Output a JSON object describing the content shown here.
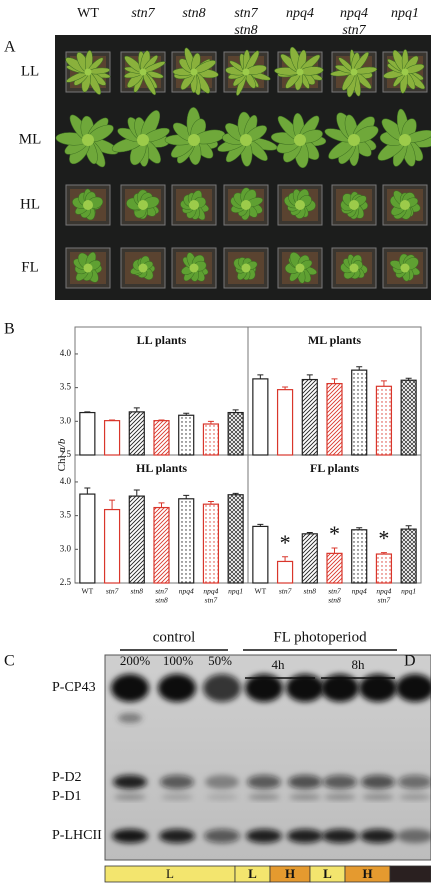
{
  "figure": {
    "panel_labels": [
      "A",
      "B",
      "C",
      "D"
    ],
    "photo": {
      "columns": [
        [
          "WT"
        ],
        [
          "stn7"
        ],
        [
          "stn8"
        ],
        [
          "stn7",
          "stn8"
        ],
        [
          "npq4"
        ],
        [
          "npq4",
          "stn7"
        ],
        [
          "npq1"
        ]
      ],
      "rows": [
        "LL",
        "ML",
        "HL",
        "FL"
      ]
    },
    "y_axis_label": [
      "Chl",
      "a/b"
    ],
    "blot": {
      "groups": [
        {
          "label": "control",
          "lanes": [
            "200%",
            "100%",
            "50%"
          ]
        },
        {
          "label": "FL photoperiod",
          "lanes": [
            "4h",
            "8h"
          ]
        }
      ],
      "proteins": [
        "P-CP43",
        "P-D2",
        "P-D1",
        "P-LHCII"
      ],
      "light_strip": [
        "L",
        "L",
        "H",
        "L",
        "H"
      ]
    }
  },
  "chart_data": [
    {
      "type": "bar",
      "title": "LL plants",
      "values": [
        3.13,
        3.01,
        3.14,
        3.01,
        3.09,
        2.96,
        3.13
      ],
      "errors": [
        0.01,
        0.01,
        0.06,
        0.01,
        0.03,
        0.04,
        0.04
      ],
      "ylim": [
        2.5,
        4.4
      ],
      "yticks": [
        {
          "value": 4,
          "label": "4.0"
        },
        {
          "value": 3.5,
          "label": "3.5"
        },
        {
          "value": 3,
          "label": "3.0"
        },
        {
          "value": 2.5,
          "label": "2.5"
        }
      ],
      "bar_colors": [
        "#222222",
        "#d9362b",
        "#222222",
        "#d9362b",
        "#222222",
        "#d9362b",
        "#222222"
      ],
      "bar_patterns": [
        "open",
        "open",
        "hatch",
        "hatch",
        "dots",
        "dots",
        "cross"
      ]
    },
    {
      "type": "bar",
      "title": "ML plants",
      "values": [
        3.63,
        3.47,
        3.62,
        3.56,
        3.76,
        3.52,
        3.61
      ],
      "errors": [
        0.06,
        0.04,
        0.07,
        0.07,
        0.05,
        0.08,
        0.03
      ],
      "ylim": [
        2.5,
        4.4
      ],
      "bar_colors": [
        "#222222",
        "#d9362b",
        "#222222",
        "#d9362b",
        "#222222",
        "#d9362b",
        "#222222"
      ],
      "bar_patterns": [
        "open",
        "open",
        "hatch",
        "hatch",
        "dots",
        "dots",
        "cross"
      ]
    },
    {
      "type": "bar",
      "title": "HL plants",
      "values": [
        3.82,
        3.59,
        3.79,
        3.62,
        3.75,
        3.67,
        3.81
      ],
      "errors": [
        0.09,
        0.14,
        0.09,
        0.07,
        0.05,
        0.04,
        0.02
      ],
      "ylim": [
        2.5,
        4.4
      ],
      "yticks": [
        {
          "value": 4,
          "label": "4.0"
        },
        {
          "value": 3.5,
          "label": "3.5"
        },
        {
          "value": 3,
          "label": "3.0"
        },
        {
          "value": 2.5,
          "label": "2.5"
        }
      ],
      "categories": [
        [
          "WT"
        ],
        [
          "stn7"
        ],
        [
          "stn8"
        ],
        [
          "stn7",
          "stn8"
        ],
        [
          "npq4"
        ],
        [
          "npq4",
          "stn7"
        ],
        [
          "npq1"
        ]
      ],
      "bar_colors": [
        "#222222",
        "#d9362b",
        "#222222",
        "#d9362b",
        "#222222",
        "#d9362b",
        "#222222"
      ],
      "bar_patterns": [
        "open",
        "open",
        "hatch",
        "hatch",
        "dots",
        "dots",
        "cross"
      ]
    },
    {
      "type": "bar",
      "title": "FL plants",
      "values": [
        3.34,
        2.82,
        3.23,
        2.94,
        3.29,
        2.93,
        3.3
      ],
      "errors": [
        0.03,
        0.07,
        0.02,
        0.08,
        0.03,
        0.02,
        0.05
      ],
      "ylim": [
        2.5,
        4.4
      ],
      "markers": [
        null,
        "*",
        null,
        "*",
        null,
        "*",
        null
      ],
      "categories": [
        [
          "WT"
        ],
        [
          "stn7"
        ],
        [
          "stn8"
        ],
        [
          "stn7",
          "stn8"
        ],
        [
          "npq4"
        ],
        [
          "npq4",
          "stn7"
        ],
        [
          "npq1"
        ]
      ],
      "bar_colors": [
        "#222222",
        "#d9362b",
        "#222222",
        "#d9362b",
        "#222222",
        "#d9362b",
        "#222222"
      ],
      "bar_patterns": [
        "open",
        "open",
        "hatch",
        "hatch",
        "dots",
        "dots",
        "cross"
      ]
    }
  ]
}
